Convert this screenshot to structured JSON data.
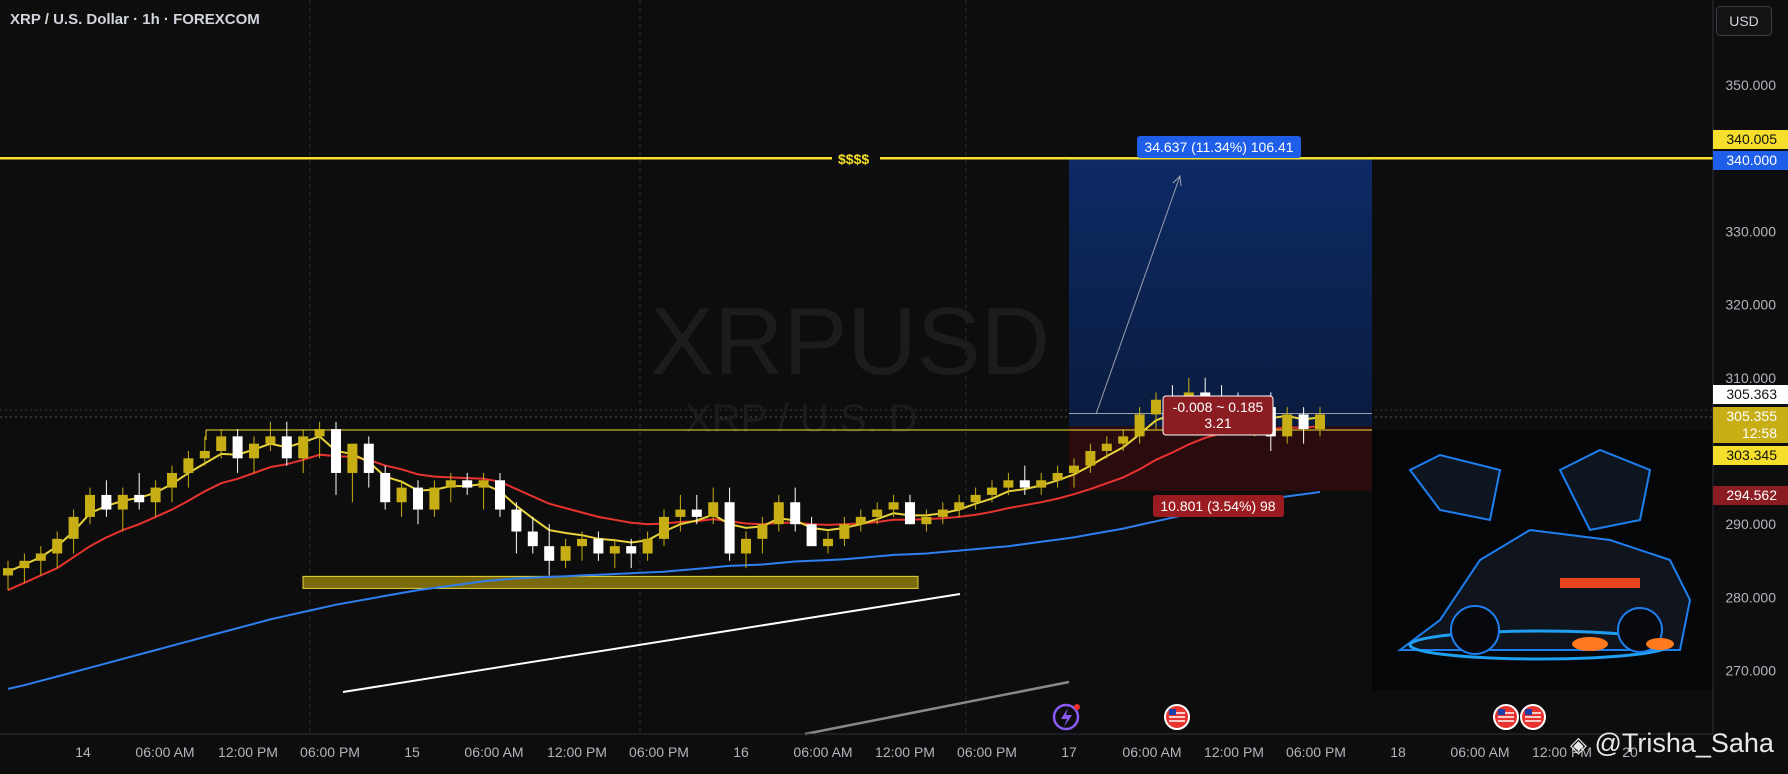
{
  "header": {
    "title": "XRP / U.S. Dollar · 1h · FOREXCOM",
    "currency": "USD"
  },
  "watermark_symbol": "XRPUSD",
  "watermark_desc": "XRP / U.S. D",
  "annotations": {
    "target_label": "$$$$",
    "target_box": "34.637 (11.34%) 106.41",
    "stop_box": "10.801 (3.54%) 98",
    "risk_reward_line1": "-0.008 ~ 0.185",
    "risk_reward_line2": "3.21"
  },
  "price_tags": {
    "resistance": "340.005",
    "target": "340.000",
    "last": "305.363",
    "current": "305.355",
    "countdown": "12:58",
    "entry": "303.345",
    "stop": "294.562"
  },
  "footer": {
    "credit": "@Trisha_Saha"
  },
  "colors": {
    "background": "#0d0d0d",
    "candle_up": "#c7ae14",
    "candle_down": "#ffffff",
    "ema_fast": "#e8d43a",
    "ema_mid": "#e8332f",
    "ema_slow": "#2f7ff0",
    "resistance": "#f5df2a",
    "target_zone": "#0c2454",
    "stop_zone": "#2a0c0f"
  },
  "chart_data": {
    "type": "candlestick",
    "symbol": "XRPUSD",
    "interval": "1h",
    "y_ticks": [
      270,
      280,
      290,
      300,
      310,
      320,
      330,
      340,
      350
    ],
    "y_tick_labels": [
      "270.000",
      "280.000",
      "290.000",
      "300.000",
      "310.000",
      "320.000",
      "330.000",
      "340.000",
      "350.000"
    ],
    "x_tick_labels": [
      "14",
      "06:00 AM",
      "12:00 PM",
      "06:00 PM",
      "15",
      "06:00 AM",
      "12:00 PM",
      "06:00 PM",
      "16",
      "06:00 AM",
      "12:00 PM",
      "06:00 PM",
      "17",
      "06:00 AM",
      "12:00 PM",
      "06:00 PM",
      "18",
      "06:00 AM",
      "12:00 PM",
      "20"
    ],
    "ohlc": [
      [
        283,
        285,
        281,
        284
      ],
      [
        284,
        286,
        282,
        285
      ],
      [
        285,
        287,
        283,
        286
      ],
      [
        286,
        289,
        284,
        288
      ],
      [
        288,
        292,
        286,
        291
      ],
      [
        291,
        295,
        290,
        294
      ],
      [
        294,
        296,
        291,
        292
      ],
      [
        292,
        295,
        289,
        294
      ],
      [
        294,
        297,
        292,
        293
      ],
      [
        293,
        296,
        291,
        295
      ],
      [
        295,
        298,
        293,
        297
      ],
      [
        297,
        300,
        295,
        299
      ],
      [
        299,
        302,
        298,
        300
      ],
      [
        300,
        303,
        299,
        302
      ],
      [
        302,
        303,
        297,
        299
      ],
      [
        299,
        302,
        297,
        301
      ],
      [
        301,
        304,
        300,
        302
      ],
      [
        302,
        304,
        298,
        299
      ],
      [
        299,
        303,
        297,
        302
      ],
      [
        302,
        304,
        299,
        303
      ],
      [
        303,
        304,
        294,
        297
      ],
      [
        297,
        301,
        293,
        301
      ],
      [
        301,
        302,
        295,
        297
      ],
      [
        297,
        298,
        292,
        293
      ],
      [
        293,
        296,
        291,
        295
      ],
      [
        295,
        296,
        290,
        292
      ],
      [
        292,
        296,
        291,
        295
      ],
      [
        295,
        297,
        293,
        296
      ],
      [
        296,
        297,
        294,
        295
      ],
      [
        295,
        297,
        292,
        296
      ],
      [
        296,
        297,
        291,
        292
      ],
      [
        292,
        293,
        286,
        289
      ],
      [
        289,
        291,
        286,
        287
      ],
      [
        287,
        290,
        283,
        285
      ],
      [
        285,
        288,
        284,
        287
      ],
      [
        287,
        289,
        285,
        288
      ],
      [
        288,
        289,
        285,
        286
      ],
      [
        286,
        288,
        284,
        287
      ],
      [
        287,
        288,
        284,
        286
      ],
      [
        286,
        289,
        285,
        288
      ],
      [
        288,
        292,
        287,
        291
      ],
      [
        291,
        294,
        289,
        292
      ],
      [
        292,
        294,
        290,
        291
      ],
      [
        291,
        295,
        290,
        293
      ],
      [
        293,
        295,
        285,
        286
      ],
      [
        286,
        289,
        284,
        288
      ],
      [
        288,
        291,
        286,
        290
      ],
      [
        290,
        294,
        289,
        293
      ],
      [
        293,
        295,
        289,
        290
      ],
      [
        290,
        291,
        287,
        287
      ],
      [
        287,
        289,
        286,
        288
      ],
      [
        288,
        291,
        287,
        290
      ],
      [
        290,
        292,
        289,
        291
      ],
      [
        291,
        293,
        290,
        292
      ],
      [
        292,
        294,
        291,
        293
      ],
      [
        293,
        294,
        290,
        290
      ],
      [
        290,
        292,
        289,
        291
      ],
      [
        291,
        293,
        290,
        292
      ],
      [
        292,
        294,
        291,
        293
      ],
      [
        293,
        295,
        292,
        294
      ],
      [
        294,
        296,
        293,
        295
      ],
      [
        295,
        297,
        294,
        296
      ],
      [
        296,
        298,
        294,
        295
      ],
      [
        295,
        297,
        294,
        296
      ],
      [
        296,
        298,
        295,
        297
      ],
      [
        297,
        299,
        295,
        298
      ],
      [
        298,
        301,
        297,
        300
      ],
      [
        300,
        302,
        299,
        301
      ],
      [
        301,
        303,
        300,
        302
      ],
      [
        302,
        306,
        301,
        305
      ],
      [
        305,
        308,
        303,
        307
      ],
      [
        307,
        309,
        305,
        306
      ],
      [
        306,
        310,
        305,
        308
      ],
      [
        308,
        310,
        304,
        307
      ],
      [
        307,
        309,
        305,
        306
      ],
      [
        306,
        308,
        303,
        304
      ],
      [
        304,
        307,
        302,
        306
      ],
      [
        306,
        308,
        300,
        302
      ],
      [
        302,
        306,
        301,
        305
      ],
      [
        305,
        306,
        301,
        303
      ],
      [
        303,
        306,
        302,
        305
      ]
    ],
    "ema_fast": [
      283.5,
      284.5,
      285.5,
      287,
      289,
      291.5,
      292.5,
      293.2,
      293.6,
      294.3,
      295.5,
      297,
      298.3,
      299.6,
      299.5,
      300.2,
      301,
      300.5,
      301.2,
      302,
      300,
      299.6,
      298.5,
      296.5,
      295.8,
      294.6,
      294.7,
      295.2,
      295.2,
      295.5,
      294.5,
      292.5,
      290.8,
      289.2,
      288.8,
      288.5,
      288,
      287.8,
      287.5,
      287.8,
      289,
      290,
      290.5,
      291.3,
      290,
      289.5,
      289.7,
      290.8,
      290.5,
      289.5,
      289.2,
      289.5,
      290,
      290.7,
      291.5,
      291.2,
      291.2,
      291.5,
      292,
      292.8,
      293.5,
      294.5,
      294.8,
      295.3,
      296,
      296.8,
      298,
      299.3,
      300.5,
      302.3,
      304.2,
      305,
      306.2,
      306.5,
      306.3,
      305.5,
      305.6,
      304.5,
      304.8,
      304.3,
      304.6
    ],
    "ema_mid": [
      281,
      282,
      283,
      284,
      285.5,
      287,
      288.2,
      289.2,
      290,
      291,
      292,
      293.2,
      294.5,
      295.6,
      296.2,
      297,
      297.8,
      298.2,
      298.8,
      299.5,
      299.3,
      299.2,
      298.8,
      298,
      297.5,
      296.8,
      296.5,
      296.4,
      296.3,
      296.2,
      295.8,
      294.8,
      293.8,
      292.8,
      292.2,
      291.6,
      291,
      290.6,
      290.2,
      290,
      290.1,
      290.3,
      290.4,
      290.7,
      290.4,
      290.1,
      290,
      290.2,
      290.2,
      290,
      289.9,
      290,
      290.1,
      290.3,
      290.6,
      290.6,
      290.7,
      290.8,
      291,
      291.3,
      291.7,
      292.2,
      292.6,
      293,
      293.5,
      294.1,
      294.8,
      295.6,
      296.4,
      297.5,
      298.8,
      299.8,
      300.9,
      301.8,
      302.4,
      302.7,
      303,
      303,
      303.2,
      303.2,
      303.4
    ],
    "ema_slow": [
      267.5,
      268,
      268.6,
      269.2,
      269.8,
      270.4,
      271,
      271.6,
      272.2,
      272.8,
      273.4,
      274,
      274.6,
      275.2,
      275.8,
      276.4,
      277,
      277.5,
      278,
      278.5,
      279,
      279.4,
      279.8,
      280.2,
      280.6,
      281,
      281.3,
      281.6,
      281.9,
      282.2,
      282.4,
      282.6,
      282.7,
      282.8,
      282.9,
      283,
      283.1,
      283.2,
      283.3,
      283.4,
      283.5,
      283.7,
      283.9,
      284.1,
      284.3,
      284.4,
      284.5,
      284.7,
      284.9,
      285,
      285.1,
      285.2,
      285.4,
      285.6,
      285.8,
      285.9,
      286,
      286.2,
      286.4,
      286.6,
      286.8,
      287,
      287.3,
      287.6,
      287.9,
      288.2,
      288.6,
      289,
      289.4,
      289.9,
      290.4,
      290.9,
      291.4,
      291.9,
      292.4,
      292.8,
      293.2,
      293.5,
      293.8,
      294.1,
      294.4
    ],
    "resistance_level": 340.0,
    "support_zone": [
      281.5,
      282.6
    ],
    "position": {
      "entry": 303.345,
      "target": 340.0,
      "stop": 294.562
    },
    "trendlines": [
      {
        "from": [
          45,
          276
        ],
        "to": [
          87,
          281
        ]
      },
      {
        "from": [
          61,
          264
        ],
        "to": [
          87,
          269.5
        ]
      }
    ]
  }
}
